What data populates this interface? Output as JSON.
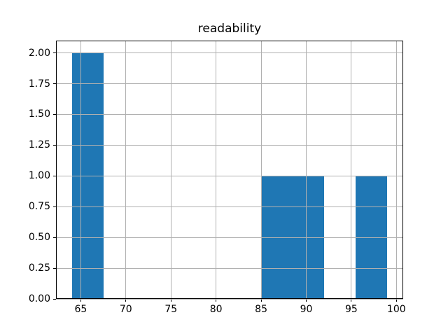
{
  "chart_data": {
    "type": "bar",
    "subtype": "histogram",
    "title": "readability",
    "xlabel": "",
    "ylabel": "",
    "bin_edges": [
      64.0,
      67.5,
      71.0,
      74.5,
      78.0,
      81.5,
      85.0,
      88.5,
      92.0,
      95.5,
      99.0
    ],
    "counts": [
      2,
      0,
      0,
      0,
      0,
      0,
      1,
      1,
      0,
      1
    ],
    "xlim": [
      62.25,
      100.75
    ],
    "ylim": [
      0,
      2.1
    ],
    "x_ticks": [
      65,
      70,
      75,
      80,
      85,
      90,
      95,
      100
    ],
    "x_tick_labels": [
      "65",
      "70",
      "75",
      "80",
      "85",
      "90",
      "95",
      "100"
    ],
    "y_ticks": [
      0.0,
      0.25,
      0.5,
      0.75,
      1.0,
      1.25,
      1.5,
      1.75,
      2.0
    ],
    "y_tick_labels": [
      "0.00",
      "0.25",
      "0.50",
      "0.75",
      "1.00",
      "1.25",
      "1.50",
      "1.75",
      "2.00"
    ],
    "grid": true,
    "grid_on_top_of_bars": true,
    "legend": null,
    "colors": {
      "bar": "#1f77b4",
      "grid": "#b0b0b0",
      "spine": "#000000",
      "text": "#000000",
      "background": "#ffffff"
    }
  }
}
